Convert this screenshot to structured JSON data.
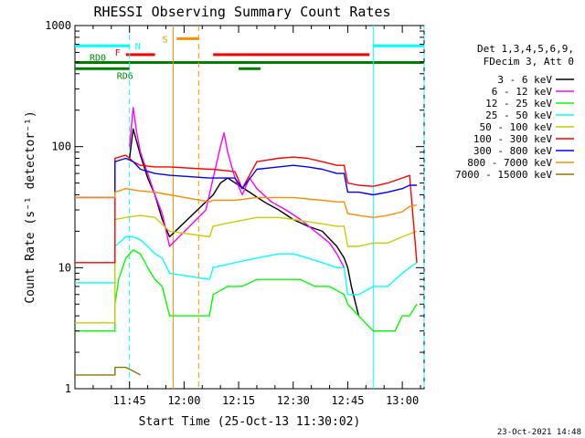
{
  "chart_data": {
    "type": "line",
    "title": "RHESSI Observing Summary Count Rates",
    "xlabel": "Start Time (25-Oct-13 11:30:02)",
    "ylabel": "Count Rate (s⁻¹ detector⁻¹)",
    "xlim_minutes": [
      0,
      96
    ],
    "ylim": [
      1,
      1000
    ],
    "yscale": "log",
    "x_ticks": [
      {
        "minute": 15,
        "label": "11:45"
      },
      {
        "minute": 30,
        "label": "12:00"
      },
      {
        "minute": 45,
        "label": "12:15"
      },
      {
        "minute": 60,
        "label": "12:30"
      },
      {
        "minute": 75,
        "label": "12:45"
      },
      {
        "minute": 90,
        "label": "13:00"
      }
    ],
    "y_ticks": [
      {
        "value": 1,
        "label": "1"
      },
      {
        "value": 10,
        "label": "10"
      },
      {
        "value": 100,
        "label": "100"
      },
      {
        "value": 1000,
        "label": "1000"
      }
    ],
    "legend": {
      "header": [
        "Det 1,3,4,5,6,9,",
        "FDecim 3, Att 0"
      ],
      "position": "right"
    },
    "series": [
      {
        "name": "3 - 6 keV",
        "color": "#000000",
        "pts": [
          [
            15,
            80
          ],
          [
            16,
            140
          ],
          [
            18,
            85
          ],
          [
            20,
            55
          ],
          [
            22,
            40
          ],
          [
            24,
            25
          ],
          [
            26,
            18
          ],
          [
            38,
            40
          ],
          [
            40,
            50
          ],
          [
            42,
            55
          ],
          [
            45,
            48
          ],
          [
            48,
            42
          ],
          [
            52,
            35
          ],
          [
            56,
            30
          ],
          [
            60,
            25
          ],
          [
            64,
            22
          ],
          [
            68,
            20
          ],
          [
            72,
            15
          ],
          [
            74,
            12
          ],
          [
            75,
            10
          ],
          [
            76,
            7
          ],
          [
            78,
            4
          ]
        ]
      },
      {
        "name": "6 - 12 keV",
        "color": "#ff00ff",
        "pts": [
          [
            15,
            100
          ],
          [
            16,
            210
          ],
          [
            17,
            130
          ],
          [
            18,
            90
          ],
          [
            20,
            60
          ],
          [
            22,
            40
          ],
          [
            24,
            28
          ],
          [
            26,
            15
          ],
          [
            36,
            30
          ],
          [
            38,
            55
          ],
          [
            40,
            100
          ],
          [
            41,
            130
          ],
          [
            42,
            90
          ],
          [
            44,
            55
          ],
          [
            46,
            40
          ],
          [
            48,
            55
          ],
          [
            50,
            45
          ],
          [
            54,
            35
          ],
          [
            58,
            30
          ],
          [
            62,
            25
          ],
          [
            66,
            20
          ],
          [
            70,
            16
          ],
          [
            72,
            13
          ],
          [
            74,
            10
          ]
        ]
      },
      {
        "name": "12 - 25 keV",
        "color": "#00ff00",
        "pts": [
          [
            0,
            3
          ],
          [
            11,
            3
          ],
          [
            11,
            5
          ],
          [
            12,
            8
          ],
          [
            14,
            12
          ],
          [
            16,
            14
          ],
          [
            18,
            13
          ],
          [
            20,
            10
          ],
          [
            22,
            8
          ],
          [
            24,
            7
          ],
          [
            26,
            4
          ],
          [
            37,
            4
          ],
          [
            38,
            6
          ],
          [
            42,
            7
          ],
          [
            46,
            7
          ],
          [
            50,
            8
          ],
          [
            54,
            8
          ],
          [
            58,
            8
          ],
          [
            62,
            8
          ],
          [
            66,
            7
          ],
          [
            70,
            7
          ],
          [
            74,
            6
          ],
          [
            75,
            5
          ],
          [
            78,
            4
          ],
          [
            82,
            3
          ],
          [
            86,
            3
          ],
          [
            88,
            3
          ],
          [
            90,
            4
          ],
          [
            92,
            4
          ],
          [
            94,
            5
          ]
        ]
      },
      {
        "name": "25 - 50 keV",
        "color": "#00ffff",
        "pts": [
          [
            0,
            7.5
          ],
          [
            11,
            7.5
          ],
          [
            11,
            15
          ],
          [
            14,
            18
          ],
          [
            16,
            18
          ],
          [
            18,
            17
          ],
          [
            20,
            15
          ],
          [
            22,
            13
          ],
          [
            24,
            12
          ],
          [
            26,
            9
          ],
          [
            37,
            8
          ],
          [
            38,
            10
          ],
          [
            44,
            11
          ],
          [
            50,
            12
          ],
          [
            56,
            13
          ],
          [
            60,
            13
          ],
          [
            64,
            12
          ],
          [
            68,
            11
          ],
          [
            72,
            10
          ],
          [
            74,
            10
          ],
          [
            75,
            6
          ],
          [
            78,
            6
          ],
          [
            82,
            7
          ],
          [
            86,
            7
          ],
          [
            90,
            9
          ],
          [
            92,
            10
          ],
          [
            94,
            11
          ]
        ]
      },
      {
        "name": "50 - 100 keV",
        "color": "#cccc00",
        "pts": [
          [
            0,
            3.5
          ],
          [
            11,
            3.5
          ],
          [
            11,
            25
          ],
          [
            14,
            26
          ],
          [
            18,
            27
          ],
          [
            22,
            26
          ],
          [
            26,
            20
          ],
          [
            37,
            18
          ],
          [
            38,
            22
          ],
          [
            44,
            24
          ],
          [
            50,
            26
          ],
          [
            56,
            26
          ],
          [
            60,
            25
          ],
          [
            64,
            24
          ],
          [
            68,
            23
          ],
          [
            72,
            22
          ],
          [
            74,
            22
          ],
          [
            75,
            15
          ],
          [
            78,
            15
          ],
          [
            82,
            16
          ],
          [
            86,
            16
          ],
          [
            90,
            18
          ],
          [
            92,
            19
          ],
          [
            94,
            20
          ]
        ]
      },
      {
        "name": "100 - 300 keV",
        "color": "#ff0000",
        "pts": [
          [
            0,
            11
          ],
          [
            11,
            11
          ],
          [
            11,
            80
          ],
          [
            14,
            85
          ],
          [
            16,
            75
          ],
          [
            18,
            70
          ],
          [
            22,
            68
          ],
          [
            26,
            68
          ],
          [
            37,
            65
          ],
          [
            38,
            65
          ],
          [
            44,
            62
          ],
          [
            46,
            45
          ],
          [
            50,
            75
          ],
          [
            56,
            80
          ],
          [
            60,
            82
          ],
          [
            64,
            80
          ],
          [
            68,
            75
          ],
          [
            72,
            70
          ],
          [
            74,
            70
          ],
          [
            75,
            50
          ],
          [
            78,
            48
          ],
          [
            82,
            47
          ],
          [
            86,
            50
          ],
          [
            90,
            55
          ],
          [
            92,
            58
          ],
          [
            94,
            11
          ]
        ]
      },
      {
        "name": "300 - 800 keV",
        "color": "#0000ff",
        "pts": [
          [
            0,
            38
          ],
          [
            11,
            38
          ],
          [
            11,
            75
          ],
          [
            14,
            80
          ],
          [
            16,
            75
          ],
          [
            18,
            65
          ],
          [
            22,
            60
          ],
          [
            26,
            58
          ],
          [
            37,
            55
          ],
          [
            38,
            55
          ],
          [
            44,
            55
          ],
          [
            46,
            45
          ],
          [
            50,
            65
          ],
          [
            56,
            68
          ],
          [
            60,
            70
          ],
          [
            64,
            68
          ],
          [
            68,
            65
          ],
          [
            72,
            60
          ],
          [
            74,
            60
          ],
          [
            75,
            42
          ],
          [
            78,
            42
          ],
          [
            82,
            40
          ],
          [
            86,
            42
          ],
          [
            90,
            45
          ],
          [
            92,
            48
          ],
          [
            94,
            48
          ]
        ]
      },
      {
        "name": "800 - 7000 keV",
        "color": "#ff8c00",
        "pts": [
          [
            0,
            38
          ],
          [
            11,
            38
          ],
          [
            11,
            42
          ],
          [
            14,
            45
          ],
          [
            18,
            43
          ],
          [
            22,
            42
          ],
          [
            26,
            40
          ],
          [
            37,
            35
          ],
          [
            38,
            36
          ],
          [
            44,
            36
          ],
          [
            50,
            38
          ],
          [
            56,
            38
          ],
          [
            60,
            38
          ],
          [
            64,
            37
          ],
          [
            68,
            36
          ],
          [
            72,
            35
          ],
          [
            74,
            35
          ],
          [
            75,
            28
          ],
          [
            78,
            27
          ],
          [
            82,
            26
          ],
          [
            86,
            27
          ],
          [
            90,
            29
          ],
          [
            92,
            32
          ],
          [
            94,
            33
          ]
        ]
      },
      {
        "name": "7000 - 15000 keV",
        "color": "#8b7500",
        "pts": [
          [
            0,
            1.3
          ],
          [
            11,
            1.3
          ],
          [
            11,
            1.5
          ],
          [
            14,
            1.5
          ],
          [
            16,
            1.4
          ],
          [
            18,
            1.3
          ]
        ]
      }
    ],
    "state_bars": [
      {
        "label": "N",
        "color": "#00ffff",
        "segments": [
          [
            0,
            15
          ],
          [
            82,
            96
          ]
        ],
        "y_value": 680
      },
      {
        "label": "S",
        "color": "#ff8c00",
        "segments": [
          [
            28,
            34
          ]
        ],
        "y_value": 780
      },
      {
        "label": "F",
        "color": "#ff0000",
        "segments": [
          [
            14,
            22
          ],
          [
            38,
            81
          ]
        ],
        "y_value": 575
      },
      {
        "label": "RD0",
        "color": "#008000",
        "segments": [
          [
            0,
            96
          ]
        ],
        "y_value": 495
      },
      {
        "label": "RD6",
        "color": "#008000",
        "segments": [
          [
            0,
            15
          ],
          [
            45,
            51
          ]
        ],
        "y_value": 440
      }
    ],
    "vertical_lines": [
      {
        "minute": 15,
        "color": "#00ffff",
        "dash": true
      },
      {
        "minute": 27,
        "color": "#ff8c00",
        "dash": false
      },
      {
        "minute": 34,
        "color": "#ff8c00",
        "dash": true
      },
      {
        "minute": 82,
        "color": "#00ffff",
        "dash": false
      },
      {
        "minute": 96,
        "color": "#00ffff",
        "dash": true
      }
    ]
  },
  "footer_date": "23-Oct-2021 14:48"
}
